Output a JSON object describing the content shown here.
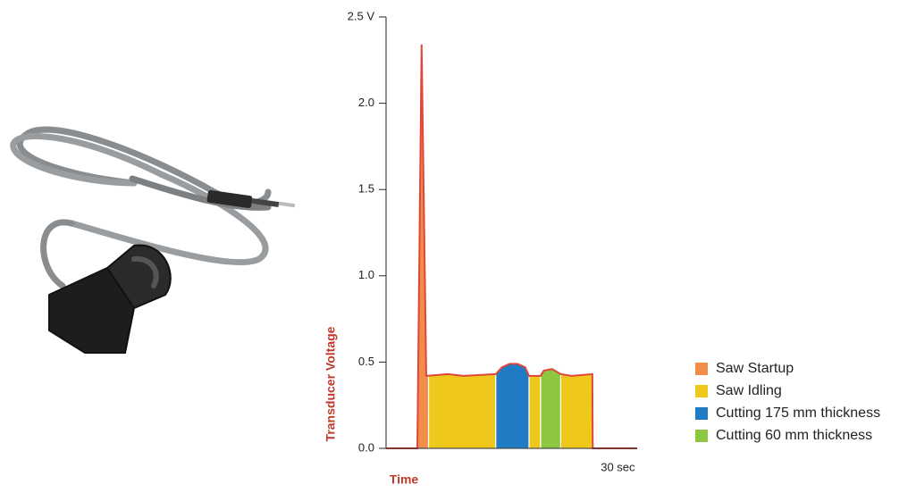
{
  "chart_data": {
    "type": "area-line",
    "y_label": "Transducer Voltage",
    "x_label": "Time",
    "xlim": [
      0,
      32.5
    ],
    "xticks": [
      {
        "value": 30,
        "label": "30 sec"
      }
    ],
    "ylim": [
      0,
      2.5
    ],
    "yticks": [
      {
        "value": 0,
        "label": "0.0"
      },
      0.5,
      {
        "value": 1,
        "label": "1.0"
      },
      1.5,
      {
        "value": 2,
        "label": "2.0"
      },
      {
        "value": 2.5,
        "label": "2.5 V"
      }
    ],
    "line": {
      "color": "#e0463a",
      "x": [
        0,
        4.05,
        4.6,
        5.2,
        8,
        10,
        14.2,
        15,
        16,
        17,
        18,
        18.5,
        20,
        20.4,
        21.5,
        22.6,
        24,
        26.7,
        26.75,
        32.5
      ],
      "values": [
        0,
        0,
        2.34,
        0.42,
        0.43,
        0.42,
        0.43,
        0.47,
        0.49,
        0.49,
        0.47,
        0.42,
        0.42,
        0.45,
        0.46,
        0.43,
        0.42,
        0.43,
        0,
        0
      ]
    },
    "series": [
      {
        "name": "Saw Startup",
        "color": "#f28c4a",
        "ranges": [
          [
            4.05,
            5.5
          ]
        ]
      },
      {
        "name": "Saw Idling",
        "color": "#eec91c",
        "ranges": [
          [
            5.5,
            14.2
          ],
          [
            18.5,
            20
          ],
          [
            22.6,
            26.75
          ]
        ]
      },
      {
        "name": "Cutting 175 mm thickness",
        "color": "#1e7bc4",
        "ranges": [
          [
            14.2,
            18.5
          ]
        ]
      },
      {
        "name": "Cutting 60 mm thickness",
        "color": "#8dc63f",
        "ranges": [
          [
            20,
            22.6
          ]
        ]
      }
    ]
  }
}
